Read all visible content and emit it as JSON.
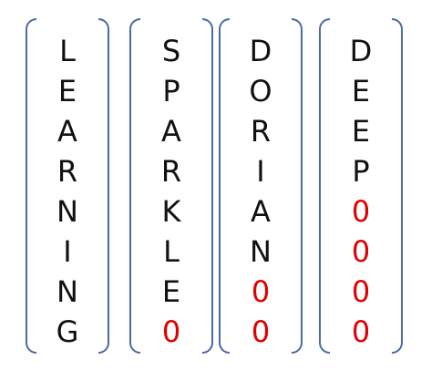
{
  "pad_color": "#e00000",
  "bracket_color": "#4a6aa3",
  "words": [
    {
      "word": "LEARNING",
      "letters": [
        "L",
        "E",
        "A",
        "R",
        "N",
        "I",
        "N",
        "G"
      ],
      "padding": []
    },
    {
      "word": "SPARKLE",
      "letters": [
        "S",
        "P",
        "A",
        "R",
        "K",
        "L",
        "E",
        "0"
      ],
      "padding": [
        "0"
      ]
    },
    {
      "word": "DORIAN",
      "letters": [
        "D",
        "O",
        "R",
        "I",
        "A",
        "N",
        "0",
        "0"
      ],
      "padding": [
        "0",
        "0"
      ]
    },
    {
      "word": "DEEP",
      "letters": [
        "D",
        "E",
        "E",
        "P",
        "0",
        "0",
        "0",
        "0"
      ],
      "padding": [
        "0",
        "0",
        "0",
        "0"
      ]
    }
  ]
}
